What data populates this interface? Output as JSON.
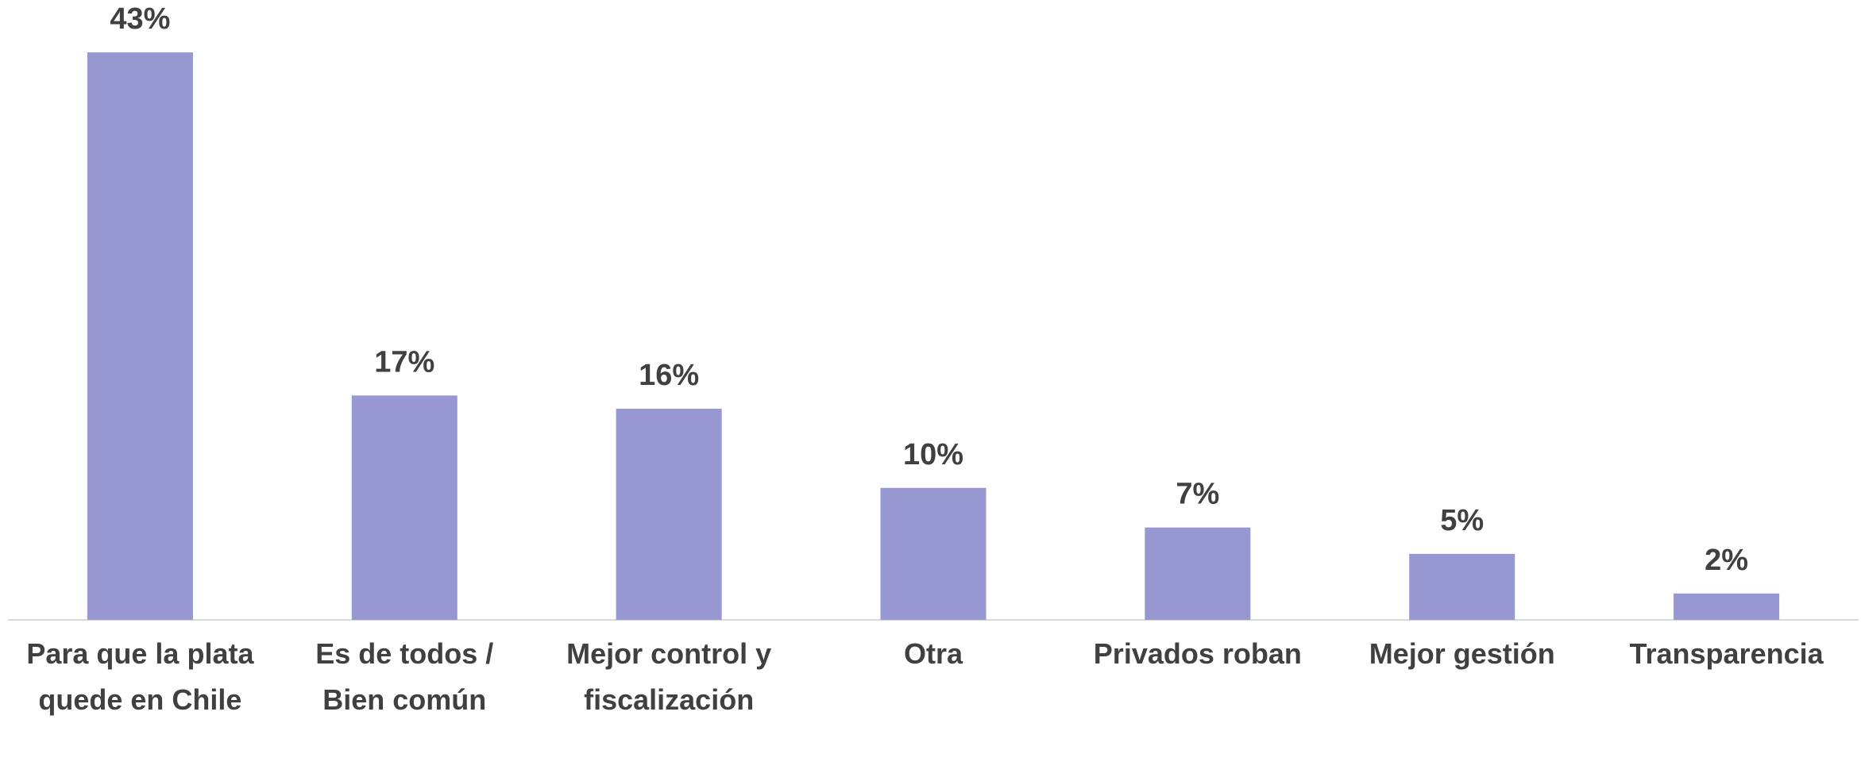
{
  "chart_data": {
    "type": "bar",
    "categories": [
      "Para que la plata quede en Chile",
      "Es de todos / Bien común",
      "Mejor control y fiscalización",
      "Otra",
      "Privados roban",
      "Mejor gestión",
      "Transparencia"
    ],
    "values": [
      43,
      17,
      16,
      10,
      7,
      5,
      2
    ],
    "value_labels": [
      "43%",
      "17%",
      "16%",
      "10%",
      "7%",
      "5%",
      "2%"
    ],
    "color": "#9797d2"
  }
}
